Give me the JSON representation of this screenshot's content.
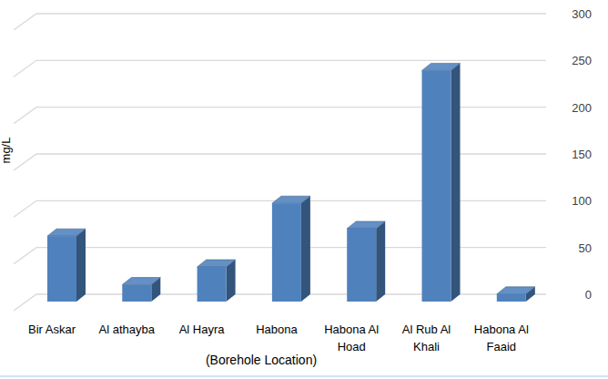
{
  "chart_data": {
    "type": "bar",
    "y_label": "mg/L",
    "x_label": "(Borehole Location)",
    "categories": [
      "Bir Askar",
      "Al athayba",
      "Al Hayra",
      "Habona",
      "Habona Al Hoad",
      "Al Rub Al Khali",
      "Habona Al Faaid"
    ],
    "values": [
      70,
      18,
      37,
      105,
      78,
      247,
      8
    ],
    "color": "#4f81bd",
    "ylim": [
      0,
      300
    ],
    "yticks": [
      0,
      50,
      100,
      150,
      200,
      250,
      300
    ],
    "grid": true
  }
}
